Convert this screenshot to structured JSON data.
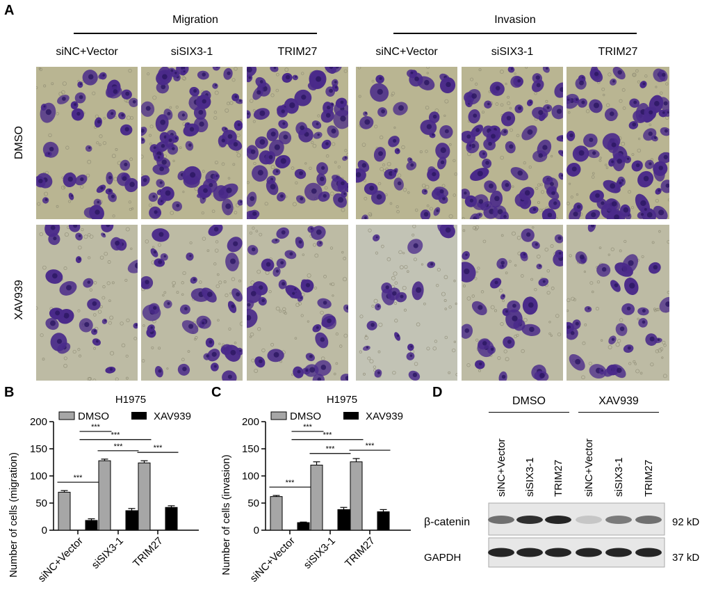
{
  "panel_A": {
    "label": "A",
    "groups": [
      "Migration",
      "Invasion"
    ],
    "columns": [
      "siNC+Vector",
      "siSIX3-1",
      "TRIM27",
      "siNC+Vector",
      "siSIX3-1",
      "TRIM27"
    ],
    "rows": [
      "DMSO",
      "XAV939"
    ],
    "colors": {
      "stain": "#4a2a8a",
      "background_dmso": "#b9b592",
      "background_xav": "#bdbba4"
    }
  },
  "panel_B": {
    "label": "B",
    "chart_data": {
      "type": "bar",
      "title": "H1975",
      "ylabel": "Number of cells (migration)",
      "ylim": [
        0,
        200
      ],
      "yticks": [
        0,
        50,
        100,
        150,
        200
      ],
      "categories": [
        "siNC+Vector",
        "siSIX3-1",
        "TRIM27"
      ],
      "series": [
        {
          "name": "DMSO",
          "color": "#a6a6a6",
          "values": [
            70,
            128,
            124
          ],
          "errors": [
            3,
            3,
            4
          ]
        },
        {
          "name": "XAV939",
          "color": "#000000",
          "values": [
            18,
            36,
            42
          ],
          "errors": [
            3,
            4,
            3
          ]
        }
      ],
      "significance": [
        "***",
        "***",
        "***",
        "***",
        "***"
      ]
    }
  },
  "panel_C": {
    "label": "C",
    "chart_data": {
      "type": "bar",
      "title": "H1975",
      "ylabel": "Number of cells (invasion)",
      "ylim": [
        0,
        200
      ],
      "yticks": [
        0,
        50,
        100,
        150,
        200
      ],
      "categories": [
        "siNC+Vector",
        "siSIX3-1",
        "TRIM27"
      ],
      "series": [
        {
          "name": "DMSO",
          "color": "#a6a6a6",
          "values": [
            62,
            120,
            126
          ],
          "errors": [
            2,
            6,
            6
          ]
        },
        {
          "name": "XAV939",
          "color": "#000000",
          "values": [
            14,
            38,
            34
          ],
          "errors": [
            1,
            4,
            4
          ]
        }
      ],
      "significance": [
        "***",
        "***",
        "***",
        "***",
        "***"
      ]
    }
  },
  "panel_D": {
    "label": "D",
    "groups": [
      "DMSO",
      "XAV939"
    ],
    "lanes": [
      "siNC+Vector",
      "siSIX3-1",
      "TRIM27",
      "siNC+Vector",
      "siSIX3-1",
      "TRIM27"
    ],
    "bands": [
      {
        "name": "β-catenin",
        "size": "92 kD",
        "intensity": [
          0.55,
          0.85,
          0.9,
          0.15,
          0.5,
          0.55
        ]
      },
      {
        "name": "GAPDH",
        "size": "37 kD",
        "intensity": [
          0.9,
          0.9,
          0.9,
          0.9,
          0.9,
          0.9
        ]
      }
    ]
  }
}
